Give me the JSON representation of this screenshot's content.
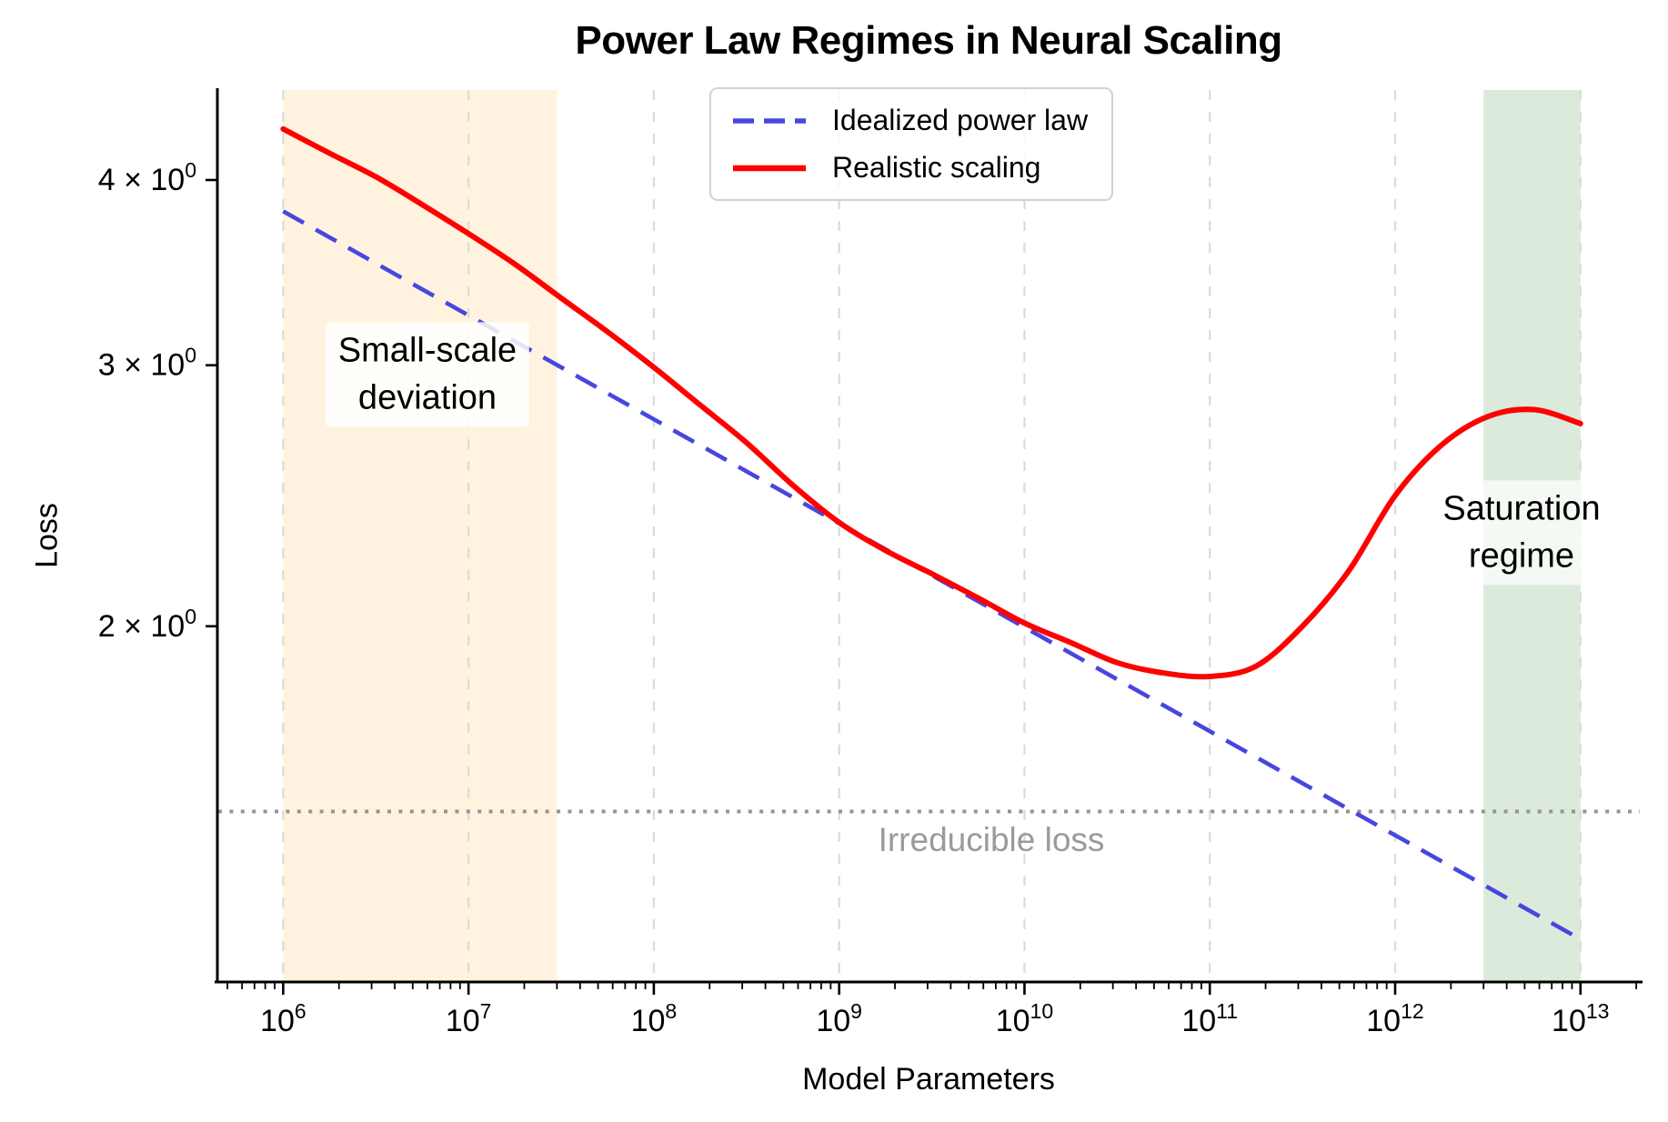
{
  "title": "Power Law Regimes in Neural Scaling",
  "axes": {
    "xlabel": "Model Parameters",
    "ylabel": "Loss"
  },
  "legend": {
    "items": [
      {
        "label": "Idealized power law",
        "color": "#4747DF",
        "style": "dashed"
      },
      {
        "label": "Realistic scaling",
        "color": "#FF0000",
        "style": "solid"
      }
    ]
  },
  "annotations": {
    "small_scale": {
      "text": "Small-scale\ndeviation"
    },
    "saturation": {
      "text": "Saturation\nregime"
    },
    "irreducible": {
      "text": "Irreducible loss",
      "color": "#9A9A9A"
    }
  },
  "chart_data": {
    "type": "line",
    "title": "Power Law Regimes in Neural Scaling",
    "xlabel": "Model Parameters",
    "ylabel": "Loss",
    "xscale": "log",
    "yscale": "log",
    "xlim_log10": [
      5.64,
      13.33
    ],
    "ylim": [
      1.151,
      4.6
    ],
    "grid": {
      "axis": "x",
      "style": "dashed",
      "color": "#DBDBDB"
    },
    "x_tick_exponents": [
      6,
      7,
      8,
      9,
      10,
      11,
      12,
      13
    ],
    "y_ticks": [
      {
        "mantissa": "2",
        "exponent": "0",
        "value": 2
      },
      {
        "mantissa": "3",
        "exponent": "0",
        "value": 3
      },
      {
        "mantissa": "4",
        "exponent": "0",
        "value": 4
      }
    ],
    "hline": {
      "value": 1.5,
      "label": "Irreducible loss",
      "color": "#949494",
      "style": "dotted"
    },
    "bands": [
      {
        "label": "Small-scale deviation",
        "x_from": 1000000.0,
        "x_to": 30000000.0,
        "color": "rgba(255,170,30,0.14)"
      },
      {
        "label": "Saturation regime",
        "x_from": 3000000000000.0,
        "x_to": 10000000000000.0,
        "color": "rgba(40,130,40,0.17)"
      }
    ],
    "series": [
      {
        "name": "Idealized power law",
        "color": "#4747DF",
        "style": "dashed",
        "power_law_exponent": -0.07,
        "points_log10x_y": [
          [
            6.0,
            3.81
          ],
          [
            13.0,
            1.23
          ]
        ]
      },
      {
        "name": "Realistic scaling",
        "color": "#FF0000",
        "style": "solid",
        "points_log10x_y": [
          [
            6.0,
            4.33
          ],
          [
            6.25,
            4.17
          ],
          [
            6.5,
            4.02
          ],
          [
            6.75,
            3.85
          ],
          [
            7.0,
            3.68
          ],
          [
            7.25,
            3.51
          ],
          [
            7.5,
            3.33
          ],
          [
            7.75,
            3.16
          ],
          [
            8.0,
            2.99
          ],
          [
            8.25,
            2.82
          ],
          [
            8.5,
            2.66
          ],
          [
            8.75,
            2.49
          ],
          [
            9.0,
            2.35
          ],
          [
            9.25,
            2.25
          ],
          [
            9.5,
            2.17
          ],
          [
            9.75,
            2.09
          ],
          [
            10.0,
            2.01
          ],
          [
            10.25,
            1.95
          ],
          [
            10.5,
            1.89
          ],
          [
            10.75,
            1.86
          ],
          [
            11.0,
            1.85
          ],
          [
            11.25,
            1.88
          ],
          [
            11.5,
            2.0
          ],
          [
            11.75,
            2.18
          ],
          [
            12.0,
            2.45
          ],
          [
            12.25,
            2.65
          ],
          [
            12.5,
            2.77
          ],
          [
            12.75,
            2.8
          ],
          [
            13.0,
            2.74
          ]
        ]
      }
    ]
  }
}
